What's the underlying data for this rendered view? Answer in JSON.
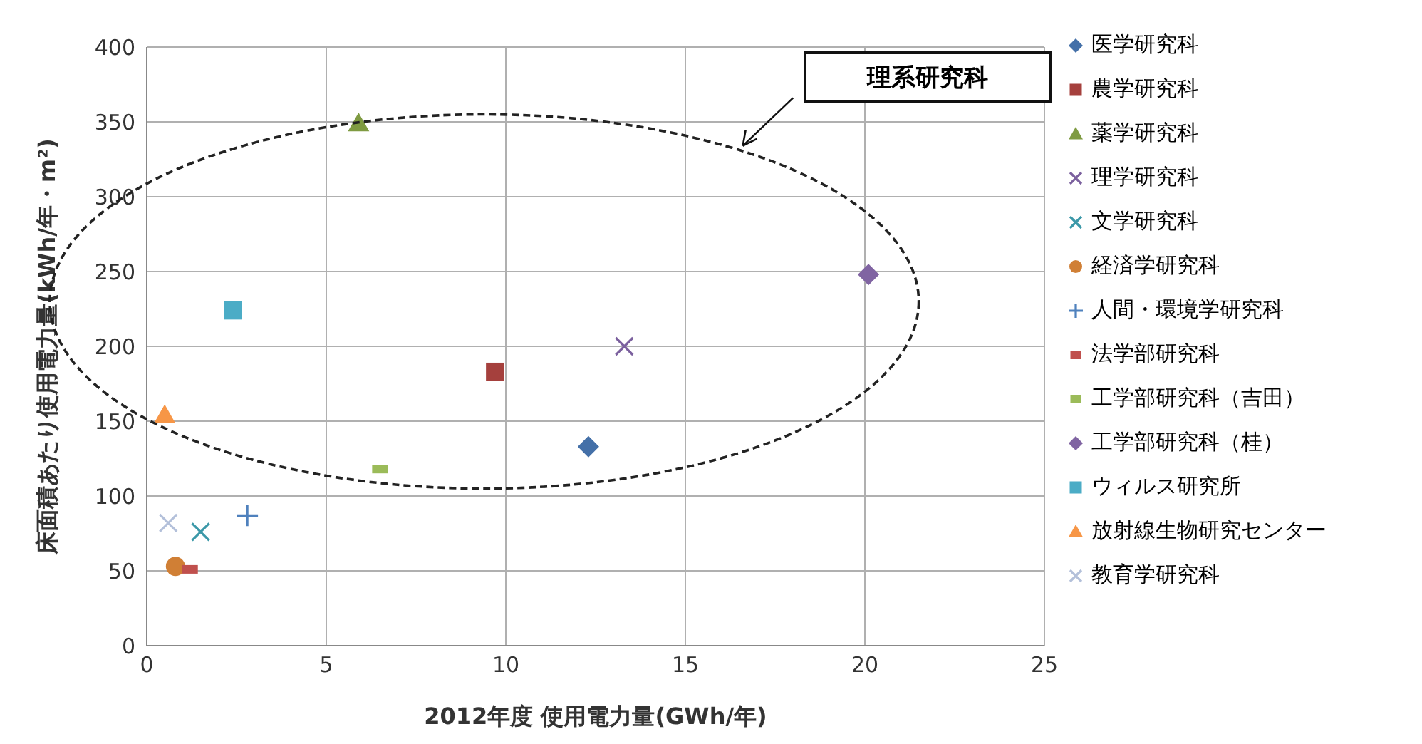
{
  "chart_data": {
    "type": "scatter",
    "xlabel": "2012年度  使用電力量(GWh/年)",
    "ylabel": "床面積あたり使用電力量(kWh/年・m²)",
    "xlim": [
      0,
      25
    ],
    "xticks": [
      0,
      5,
      10,
      15,
      20,
      25
    ],
    "ylim": [
      0,
      400
    ],
    "yticks": [
      0,
      50,
      100,
      150,
      200,
      250,
      300,
      350,
      400
    ],
    "grid": true,
    "legend": "right",
    "annotations": [
      "理系研究科"
    ],
    "series": [
      {
        "name": "医学研究科",
        "color": "#4470a8",
        "marker": "diamond",
        "x": [
          12.3
        ],
        "values": [
          133
        ]
      },
      {
        "name": "農学研究科",
        "color": "#a5403d",
        "marker": "square",
        "x": [
          9.7
        ],
        "values": [
          183
        ]
      },
      {
        "name": "薬学研究科",
        "color": "#7f9b42",
        "marker": "triangle",
        "x": [
          5.9
        ],
        "values": [
          349
        ]
      },
      {
        "name": "理学研究科",
        "color": "#7b609e",
        "marker": "cross",
        "x": [
          13.3
        ],
        "values": [
          200
        ]
      },
      {
        "name": "文学研究科",
        "color": "#3b98a8",
        "marker": "cross",
        "x": [
          1.5
        ],
        "values": [
          76
        ]
      },
      {
        "name": "経済学研究科",
        "color": "#d07f35",
        "marker": "circle",
        "x": [
          0.8
        ],
        "values": [
          53
        ]
      },
      {
        "name": "人間・環境学研究科",
        "color": "#4f81bd",
        "marker": "plus",
        "x": [
          2.8
        ],
        "values": [
          87
        ]
      },
      {
        "name": "法学部研究科",
        "color": "#c0504d",
        "x": [
          1.2
        ],
        "values": [
          51
        ]
      },
      {
        "name": "工学部研究科（吉田）",
        "color": "#9bbb59",
        "x": [
          6.5
        ],
        "values": [
          118
        ]
      },
      {
        "name": "工学部研究科（桂）",
        "color": "#8064a2",
        "marker": "diamond",
        "x": [
          20.1
        ],
        "values": [
          248
        ]
      },
      {
        "name": "ウィルス研究所",
        "color": "#4bacc6",
        "marker": "square",
        "x": [
          2.4
        ],
        "values": [
          224
        ]
      },
      {
        "name": "放射線生物研究センター",
        "color": "#f79646",
        "marker": "triangle",
        "x": [
          0.5
        ],
        "values": [
          154
        ]
      },
      {
        "name": "教育学研究科",
        "color": "#b3c0da",
        "marker": "cross",
        "x": [
          0.6
        ],
        "values": [
          82
        ]
      }
    ]
  }
}
